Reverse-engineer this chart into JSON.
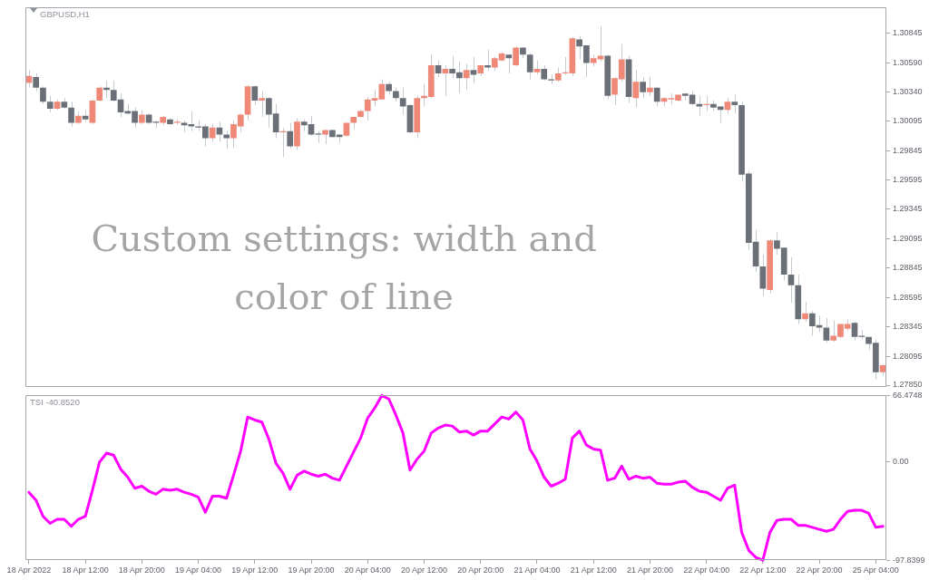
{
  "chart_data": [
    {
      "type": "candlestick",
      "title": "GBPUSD,H1",
      "annotations": [
        "Custom settings: width and color of line"
      ],
      "categories": [
        null,
        null,
        null,
        null,
        null,
        null,
        null,
        null,
        null,
        null,
        null,
        null,
        null,
        null,
        null,
        null,
        null,
        null,
        null,
        null,
        null,
        null,
        null,
        null,
        null,
        null,
        null,
        null,
        null,
        null,
        null,
        null,
        null,
        null,
        null,
        null,
        null,
        null,
        null,
        null,
        null,
        null,
        null,
        null,
        null,
        null,
        null,
        null,
        null,
        null,
        null,
        null,
        null,
        null,
        null,
        null,
        null,
        null,
        null,
        null,
        null,
        null,
        null,
        null,
        null,
        null,
        null,
        null,
        null,
        null,
        null,
        null,
        null,
        null,
        null,
        null,
        null,
        null,
        null,
        null,
        null,
        null,
        null,
        null,
        null,
        null,
        null,
        null,
        null,
        null,
        null,
        null,
        null,
        null,
        null,
        null,
        null,
        null,
        null,
        null,
        null,
        null,
        null,
        null,
        null,
        null,
        null,
        null,
        null,
        null,
        null,
        null,
        null,
        null,
        null,
        null,
        null,
        null,
        null,
        null,
        null,
        null
      ],
      "ohlc": [
        [
          1.3042,
          1.3053,
          1.3038,
          1.3048
        ],
        [
          1.3047,
          1.305,
          1.3035,
          1.3038
        ],
        [
          1.3038,
          1.3039,
          1.3024,
          1.3026
        ],
        [
          1.3026,
          1.3031,
          1.3017,
          1.302
        ],
        [
          1.302,
          1.3028,
          1.3019,
          1.3026
        ],
        [
          1.3026,
          1.3029,
          1.302,
          1.3021
        ],
        [
          1.3021,
          1.3026,
          1.3005,
          1.3008
        ],
        [
          1.3008,
          1.3018,
          1.3007,
          1.3014
        ],
        [
          1.3014,
          1.3019,
          1.3009,
          1.3011
        ],
        [
          1.3008,
          1.3028,
          1.3007,
          1.3027
        ],
        [
          1.3027,
          1.3039,
          1.3026,
          1.3038
        ],
        [
          1.3038,
          1.3044,
          1.3029,
          1.3036
        ],
        [
          1.3036,
          1.3044,
          1.3026,
          1.3027
        ],
        [
          1.3028,
          1.3033,
          1.3013,
          1.3017
        ],
        [
          1.3018,
          1.3024,
          1.3015,
          1.3016
        ],
        [
          1.3018,
          1.3021,
          1.3004,
          1.3008
        ],
        [
          1.3008,
          1.3019,
          1.3007,
          1.3015
        ],
        [
          1.3015,
          1.3016,
          1.3007,
          1.3008
        ],
        [
          1.3009,
          1.301,
          1.3004,
          1.3008
        ],
        [
          1.3008,
          1.3014,
          1.3006,
          1.3013
        ],
        [
          1.3011,
          1.3012,
          1.3006,
          1.3007
        ],
        [
          1.3008,
          1.3011,
          1.3006,
          1.3009
        ],
        [
          1.3008,
          1.301,
          1.3,
          1.3006
        ],
        [
          1.3007,
          1.3018,
          1.3001,
          1.3005
        ],
        [
          1.3005,
          1.301,
          1.3001,
          1.3004
        ],
        [
          1.3005,
          1.3007,
          1.2988,
          1.2995
        ],
        [
          1.2995,
          1.3007,
          1.2992,
          1.3004
        ],
        [
          1.3004,
          1.3009,
          1.2992,
          1.2998
        ],
        [
          1.2998,
          1.3001,
          1.2986,
          1.2995
        ],
        [
          1.2995,
          1.301,
          1.2987,
          1.3007
        ],
        [
          1.3005,
          1.3016,
          1.3,
          1.3015
        ],
        [
          1.3015,
          1.304,
          1.301,
          1.3039
        ],
        [
          1.3039,
          1.304,
          1.3023,
          1.3027
        ],
        [
          1.3027,
          1.3035,
          1.3013,
          1.3029
        ],
        [
          1.3029,
          1.303,
          1.3004,
          1.3015
        ],
        [
          1.3016,
          1.3024,
          1.2995,
          1.3
        ],
        [
          1.3,
          1.3004,
          1.2979,
          1.3001
        ],
        [
          1.3001,
          1.3008,
          1.2986,
          1.2988
        ],
        [
          1.2988,
          1.3012,
          1.2985,
          1.3009
        ],
        [
          1.3009,
          1.3011,
          1.3001,
          1.3006
        ],
        [
          1.3007,
          1.3014,
          1.2997,
          1.2998
        ],
        [
          1.2999,
          1.3001,
          1.2991,
          1.2998
        ],
        [
          1.2998,
          1.3002,
          1.299,
          1.3002
        ],
        [
          1.3002,
          1.3002,
          1.2995,
          1.2996
        ],
        [
          1.2998,
          1.2998,
          1.2991,
          1.2996
        ],
        [
          1.2997,
          1.3008,
          1.2996,
          1.3008
        ],
        [
          1.3008,
          1.3013,
          1.3003,
          1.3013
        ],
        [
          1.3013,
          1.3019,
          1.3013,
          1.3018
        ],
        [
          1.3018,
          1.303,
          1.301,
          1.3028
        ],
        [
          1.3027,
          1.3036,
          1.3022,
          1.3029
        ],
        [
          1.3028,
          1.3045,
          1.3028,
          1.3041
        ],
        [
          1.3041,
          1.3043,
          1.3032,
          1.3035
        ],
        [
          1.3035,
          1.3038,
          1.3026,
          1.3029
        ],
        [
          1.3029,
          1.3038,
          1.3015,
          1.3022
        ],
        [
          1.3023,
          1.3024,
          1.2999,
          1.3
        ],
        [
          1.3,
          1.3031,
          1.2995,
          1.3029
        ],
        [
          1.3029,
          1.3041,
          1.3022,
          1.3031
        ],
        [
          1.303,
          1.3066,
          1.3029,
          1.3057
        ],
        [
          1.3057,
          1.3061,
          1.3047,
          1.305
        ],
        [
          1.305,
          1.3057,
          1.3031,
          1.3054
        ],
        [
          1.3054,
          1.3065,
          1.3046,
          1.305
        ],
        [
          1.3051,
          1.306,
          1.3033,
          1.3046
        ],
        [
          1.3046,
          1.3058,
          1.3036,
          1.3053
        ],
        [
          1.3053,
          1.3064,
          1.3042,
          1.3049
        ],
        [
          1.305,
          1.3057,
          1.3048,
          1.3057
        ],
        [
          1.3057,
          1.307,
          1.3052,
          1.3055
        ],
        [
          1.3055,
          1.3064,
          1.3052,
          1.3063
        ],
        [
          1.3061,
          1.3068,
          1.306,
          1.3067
        ],
        [
          1.3066,
          1.3066,
          1.305,
          1.3063
        ],
        [
          1.3057,
          1.3073,
          1.3056,
          1.3072
        ],
        [
          1.3072,
          1.3072,
          1.3063,
          1.3066
        ],
        [
          1.3066,
          1.3067,
          1.3045,
          1.3051
        ],
        [
          1.3051,
          1.3061,
          1.3049,
          1.3054
        ],
        [
          1.3054,
          1.3057,
          1.3044,
          1.3045
        ],
        [
          1.3045,
          1.3049,
          1.3041,
          1.3044
        ],
        [
          1.3044,
          1.3055,
          1.3043,
          1.305
        ],
        [
          1.305,
          1.3064,
          1.3049,
          1.3051
        ],
        [
          1.305,
          1.3081,
          1.3048,
          1.308
        ],
        [
          1.3079,
          1.3082,
          1.3062,
          1.3073
        ],
        [
          1.3074,
          1.3074,
          1.3047,
          1.3059
        ],
        [
          1.3059,
          1.3066,
          1.3056,
          1.3063
        ],
        [
          1.3062,
          1.309,
          1.306,
          1.3065
        ],
        [
          1.3065,
          1.3066,
          1.3028,
          1.3031
        ],
        [
          1.3032,
          1.3047,
          1.3023,
          1.3046
        ],
        [
          1.3045,
          1.3075,
          1.3043,
          1.3062
        ],
        [
          1.3062,
          1.3065,
          1.3025,
          1.303
        ],
        [
          1.3029,
          1.3053,
          1.3021,
          1.3043
        ],
        [
          1.3043,
          1.3047,
          1.3029,
          1.3034
        ],
        [
          1.3034,
          1.3047,
          1.3031,
          1.3038
        ],
        [
          1.3038,
          1.3038,
          1.3022,
          1.3026
        ],
        [
          1.3026,
          1.303,
          1.3022,
          1.3029
        ],
        [
          1.3028,
          1.3033,
          1.3024,
          1.3029
        ],
        [
          1.3027,
          1.3032,
          1.3026,
          1.3032
        ],
        [
          1.3033,
          1.3033,
          1.3027,
          1.3031
        ],
        [
          1.3032,
          1.3035,
          1.3023,
          1.3024
        ],
        [
          1.3024,
          1.3031,
          1.3014,
          1.3022
        ],
        [
          1.3023,
          1.3031,
          1.3018,
          1.3024
        ],
        [
          1.3024,
          1.3027,
          1.3018,
          1.3021
        ],
        [
          1.3022,
          1.3022,
          1.3008,
          1.3019
        ],
        [
          1.3019,
          1.3029,
          1.3016,
          1.3026
        ],
        [
          1.3026,
          1.3032,
          1.3016,
          1.3023
        ],
        [
          1.3023,
          1.3026,
          1.2958,
          1.2964
        ],
        [
          1.2965,
          1.2967,
          1.29,
          1.2906
        ],
        [
          1.2907,
          1.2917,
          1.2881,
          1.2886
        ],
        [
          1.2886,
          1.2896,
          1.2861,
          1.2867
        ],
        [
          1.2866,
          1.2909,
          1.2863,
          1.2908
        ],
        [
          1.2908,
          1.2915,
          1.2896,
          1.2901
        ],
        [
          1.2902,
          1.2902,
          1.2874,
          1.2879
        ],
        [
          1.2879,
          1.2894,
          1.2855,
          1.287
        ],
        [
          1.287,
          1.2879,
          1.2837,
          1.2841
        ],
        [
          1.2841,
          1.2856,
          1.2839,
          1.2846
        ],
        [
          1.2846,
          1.2848,
          1.2827,
          1.2835
        ],
        [
          1.2836,
          1.2844,
          1.283,
          1.2834
        ],
        [
          1.2834,
          1.2842,
          1.2821,
          1.2823
        ],
        [
          1.2823,
          1.284,
          1.2822,
          1.2827
        ],
        [
          1.2826,
          1.2837,
          1.2825,
          1.2837
        ],
        [
          1.2833,
          1.2841,
          1.2831,
          1.2837
        ],
        [
          1.2838,
          1.2839,
          1.2823,
          1.2826
        ],
        [
          1.2827,
          1.2832,
          1.2824,
          1.2826
        ],
        [
          1.2826,
          1.2826,
          1.2815,
          1.282
        ],
        [
          1.2821,
          1.2824,
          1.279,
          1.2796
        ],
        [
          1.2796,
          1.2803,
          1.2793,
          1.2802
        ]
      ],
      "color": "#c5cad3",
      "colors": [
        "#f08878",
        "#6b6f77",
        "#6b6f77",
        "#6b6f77",
        "#f08878",
        "#6b6f77",
        "#6b6f77",
        "#f08878",
        "#6b6f77",
        "#f08878",
        "#f08878",
        "#6b6f77",
        "#6b6f77",
        "#6b6f77",
        "#6b6f77",
        "#6b6f77",
        "#f08878",
        "#6b6f77",
        "#6b6f77",
        "#f08878",
        "#6b6f77",
        "#f08878",
        "#6b6f77",
        "#6b6f77",
        "#6b6f77",
        "#6b6f77",
        "#f08878",
        "#6b6f77",
        "#6b6f77",
        "#f08878",
        "#f08878",
        "#f08878",
        "#6b6f77",
        "#f08878",
        "#6b6f77",
        "#6b6f77",
        "#f08878",
        "#6b6f77",
        "#f08878",
        "#6b6f77",
        "#6b6f77",
        "#6b6f77",
        "#f08878",
        "#6b6f77",
        "#6b6f77",
        "#f08878",
        "#f08878",
        "#f08878",
        "#f08878",
        "#f08878",
        "#f08878",
        "#6b6f77",
        "#6b6f77",
        "#6b6f77",
        "#6b6f77",
        "#f08878",
        "#f08878",
        "#f08878",
        "#6b6f77",
        "#f08878",
        "#6b6f77",
        "#6b6f77",
        "#f08878",
        "#6b6f77",
        "#f08878",
        "#6b6f77",
        "#f08878",
        "#f08878",
        "#6b6f77",
        "#f08878",
        "#6b6f77",
        "#6b6f77",
        "#f08878",
        "#6b6f77",
        "#6b6f77",
        "#f08878",
        "#f08878",
        "#f08878",
        "#6b6f77",
        "#6b6f77",
        "#f08878",
        "#f08878",
        "#6b6f77",
        "#f08878",
        "#f08878",
        "#6b6f77",
        "#f08878",
        "#6b6f77",
        "#f08878",
        "#6b6f77",
        "#f08878",
        "#f08878",
        "#f08878",
        "#6b6f77",
        "#6b6f77",
        "#6b6f77",
        "#f08878",
        "#6b6f77",
        "#6b6f77",
        "#f08878",
        "#6b6f77",
        "#6b6f77",
        "#6b6f77",
        "#6b6f77",
        "#6b6f77",
        "#f08878",
        "#6b6f77",
        "#6b6f77",
        "#6b6f77",
        "#6b6f77",
        "#f08878",
        "#6b6f77",
        "#6b6f77",
        "#6b6f77",
        "#f08878",
        "#f08878",
        "#f08878",
        "#6b6f77",
        "#6b6f77",
        "#6b6f77",
        "#6b6f77",
        "#f08878"
      ],
      "ylim": [
        1.2783,
        1.3106
      ],
      "yticks": [
        1.30845,
        {
          "value": 1.3059,
          "label": "1.30590"
        },
        {
          "value": 1.3034,
          "label": "1.30340"
        },
        1.30095,
        1.29845,
        1.29595,
        1.29345,
        1.29095,
        1.28845,
        1.28595,
        1.28345,
        1.28095,
        {
          "value": 1.2785,
          "label": "1.27850"
        }
      ],
      "grid": false
    },
    {
      "type": "line",
      "title": "TSI -40.8520",
      "categories": [
        "18 Apr 2022",
        null,
        null,
        null,
        null,
        null,
        null,
        null,
        "18 Apr 12:00",
        null,
        null,
        null,
        null,
        null,
        null,
        null,
        "18 Apr 20:00",
        null,
        null,
        null,
        null,
        null,
        null,
        null,
        "19 Apr 04:00",
        null,
        null,
        null,
        null,
        null,
        null,
        null,
        "19 Apr 12:00",
        null,
        null,
        null,
        null,
        null,
        null,
        null,
        "19 Apr 20:00",
        null,
        null,
        null,
        null,
        null,
        null,
        null,
        "20 Apr 04:00",
        null,
        null,
        null,
        null,
        null,
        null,
        null,
        "20 Apr 12:00",
        null,
        null,
        null,
        null,
        null,
        null,
        null,
        "20 Apr 20:00",
        null,
        null,
        null,
        null,
        null,
        null,
        null,
        "21 Apr 04:00",
        null,
        null,
        null,
        null,
        null,
        null,
        null,
        "21 Apr 12:00",
        null,
        null,
        null,
        null,
        null,
        null,
        null,
        "21 Apr 20:00",
        null,
        null,
        null,
        null,
        null,
        null,
        null,
        "22 Apr 04:00",
        null,
        null,
        null,
        null,
        null,
        null,
        null,
        "22 Apr 12:00",
        null,
        null,
        null,
        null,
        null,
        null,
        null,
        "22 Apr 20:00",
        null,
        null,
        null,
        null,
        null,
        null,
        null,
        "25 Apr 04:00",
        null
      ],
      "values": [
        -30,
        -38,
        -54,
        -61,
        -57,
        -57,
        -64,
        -57,
        -54,
        -28,
        0,
        9,
        7,
        -7,
        -15,
        -26,
        -24,
        -29,
        -32,
        -27,
        -28,
        -27,
        -30,
        -32,
        -35,
        -50,
        -34,
        -34,
        -36,
        -13,
        11,
        45,
        42,
        40,
        23,
        -1,
        -11,
        -27,
        -13,
        -9,
        -12,
        -14,
        -12,
        -16,
        -18,
        -4,
        10,
        24,
        44,
        54,
        66.4748,
        63,
        47,
        29,
        -8,
        3,
        11,
        29,
        34,
        37,
        36,
        30,
        31,
        27,
        31,
        31,
        38,
        45,
        43,
        50,
        42,
        13,
        1,
        -15,
        -24,
        -21,
        -17,
        24,
        31,
        17,
        13,
        12,
        -18,
        -16,
        -4,
        -17,
        -14,
        -16,
        -15,
        -21,
        -22,
        -22,
        -20,
        -19,
        -25,
        -29,
        -30,
        -34,
        -38,
        -26,
        -23,
        -70,
        -88,
        -95,
        -97.8399,
        -70,
        -58,
        -57,
        -57,
        -63,
        -63,
        -65,
        -67,
        -69,
        -67,
        -57,
        -49,
        -48,
        -48,
        -51,
        -65,
        -64
      ],
      "color": "#ff00ff",
      "ylim": [
        -97.8399,
        66.4748
      ],
      "yticks": [
        66.4748,
        {
          "value": 0,
          "label": "0.00"
        },
        -97.8399
      ],
      "grid": false,
      "marker": "none",
      "line_style": "solid"
    }
  ]
}
